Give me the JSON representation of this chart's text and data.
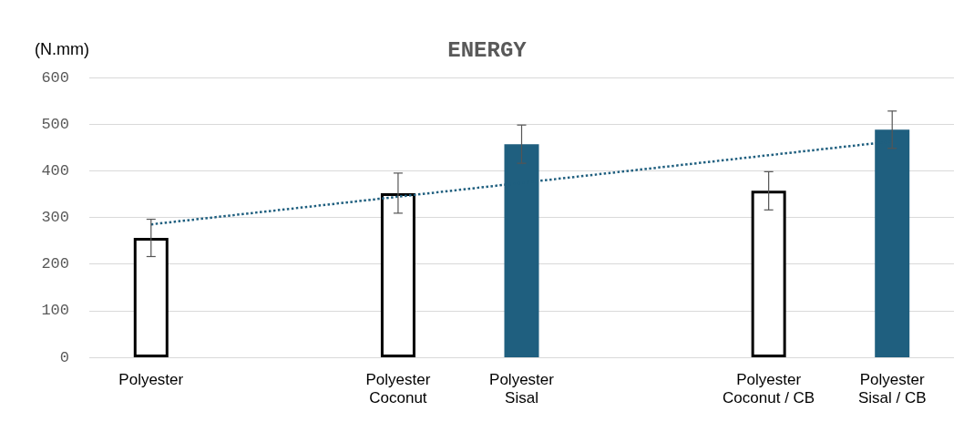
{
  "chart_data": {
    "type": "bar",
    "title": "ENERGY",
    "ylabel": "(N.mm)",
    "categories": [
      "Polyester",
      null,
      "Polyester\nCoconut",
      "Polyester\nSisal",
      null,
      "Polyester\nCoconut / CB",
      "Polyester\nSisal / CB"
    ],
    "series": [
      {
        "values": [
          256,
          null,
          352,
          457,
          null,
          357,
          488
        ],
        "colors": [
          "#ffffff",
          null,
          "#ffffff",
          "#1f5f7f",
          null,
          "#ffffff",
          "#1f5f7f"
        ],
        "errors": [
          40,
          null,
          43,
          41,
          null,
          41,
          40
        ]
      },
      {
        "type": "line",
        "color": "#1f5f7f",
        "line_style": "dotted",
        "marker": "none",
        "x": [
          "Polyester",
          "Polyester\nSisal / CB"
        ],
        "values": [
          285,
          463
        ]
      }
    ],
    "ylim": [
      0,
      600
    ],
    "yticks": [
      0,
      100,
      200,
      300,
      400,
      500,
      600
    ],
    "grid": "y"
  }
}
